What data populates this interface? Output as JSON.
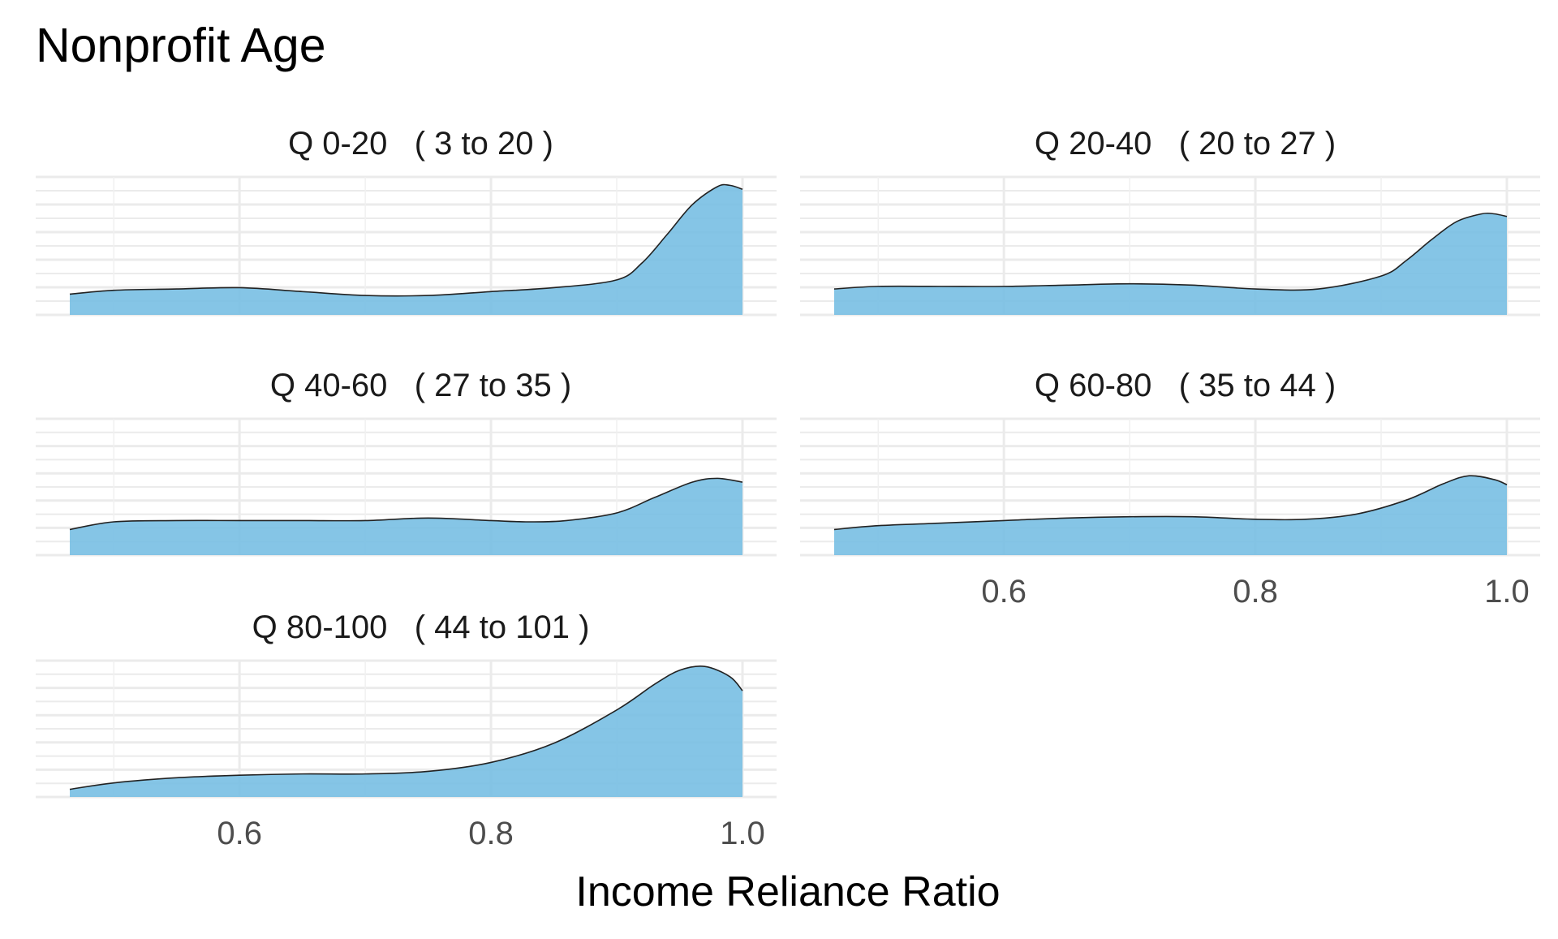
{
  "chart_data": {
    "type": "area",
    "title": "Nonprofit Age",
    "xlabel": "Income Reliance Ratio",
    "ylabel": "",
    "xlim": [
      0.465,
      1.0
    ],
    "x_ticks": [
      "0.6",
      "0.8",
      "1.0"
    ],
    "x_tick_values": [
      0.6,
      0.8,
      1.0
    ],
    "grid": true,
    "fill_color": "#74bde3",
    "line_color": "#222222",
    "panels": [
      {
        "label": "Q 0-20   ( 3 to 20 )",
        "x": [
          0.465,
          0.5,
          0.55,
          0.6,
          0.65,
          0.7,
          0.75,
          0.8,
          0.85,
          0.9,
          0.92,
          0.94,
          0.96,
          0.98,
          0.99,
          1.0
        ],
        "y": [
          0.16,
          0.19,
          0.2,
          0.21,
          0.18,
          0.15,
          0.15,
          0.18,
          0.21,
          0.27,
          0.4,
          0.62,
          0.85,
          0.99,
          1.0,
          0.97
        ]
      },
      {
        "label": "Q 20-40   ( 20 to 27 )",
        "x": [
          0.465,
          0.5,
          0.55,
          0.6,
          0.65,
          0.7,
          0.75,
          0.8,
          0.85,
          0.9,
          0.92,
          0.94,
          0.96,
          0.98,
          0.99,
          1.0
        ],
        "y": [
          0.2,
          0.22,
          0.22,
          0.22,
          0.23,
          0.24,
          0.23,
          0.2,
          0.2,
          0.3,
          0.42,
          0.58,
          0.72,
          0.78,
          0.78,
          0.76
        ]
      },
      {
        "label": "Q 40-60   ( 27 to 35 )",
        "x": [
          0.465,
          0.5,
          0.55,
          0.6,
          0.65,
          0.7,
          0.75,
          0.8,
          0.83,
          0.86,
          0.9,
          0.93,
          0.96,
          0.98,
          1.0
        ],
        "y": [
          0.2,
          0.26,
          0.27,
          0.27,
          0.27,
          0.27,
          0.29,
          0.27,
          0.26,
          0.27,
          0.33,
          0.45,
          0.57,
          0.6,
          0.57
        ]
      },
      {
        "label": "Q 60-80   ( 35 to 44 )",
        "x": [
          0.465,
          0.5,
          0.55,
          0.6,
          0.65,
          0.7,
          0.75,
          0.8,
          0.84,
          0.88,
          0.92,
          0.95,
          0.97,
          0.99,
          1.0
        ],
        "y": [
          0.2,
          0.23,
          0.25,
          0.27,
          0.29,
          0.3,
          0.3,
          0.28,
          0.28,
          0.32,
          0.43,
          0.56,
          0.62,
          0.59,
          0.55
        ]
      },
      {
        "label": "Q 80-100   ( 44 to 101 )",
        "x": [
          0.465,
          0.5,
          0.55,
          0.6,
          0.65,
          0.7,
          0.75,
          0.8,
          0.85,
          0.9,
          0.93,
          0.95,
          0.97,
          0.99,
          1.0
        ],
        "y": [
          0.06,
          0.11,
          0.15,
          0.17,
          0.18,
          0.18,
          0.2,
          0.27,
          0.42,
          0.68,
          0.88,
          0.99,
          1.02,
          0.94,
          0.83
        ]
      }
    ]
  }
}
